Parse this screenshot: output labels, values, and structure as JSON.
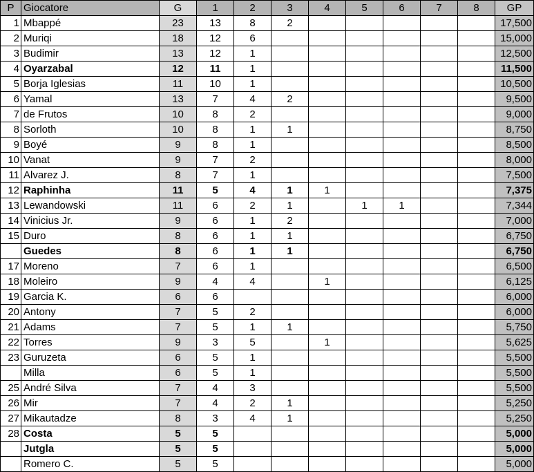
{
  "headers": {
    "p": "P",
    "name": "Giocatore",
    "g": "G",
    "c1": "1",
    "c2": "2",
    "c3": "3",
    "c4": "4",
    "c5": "5",
    "c6": "6",
    "c7": "7",
    "c8": "8",
    "gp": "GP"
  },
  "colors": {
    "header": "#b4b4b4",
    "g_column": "#d9d9d9",
    "gp_column": "#c0c0c0"
  },
  "rows": [
    {
      "p": "1",
      "name": "Mbappé",
      "g": "23",
      "c1": "13",
      "c2": "8",
      "c3": "2",
      "gp": "17,500",
      "bold": []
    },
    {
      "p": "2",
      "name": "Muriqi",
      "g": "18",
      "c1": "12",
      "c2": "6",
      "gp": "15,000",
      "bold": []
    },
    {
      "p": "3",
      "name": "Budimir",
      "g": "13",
      "c1": "12",
      "c2": "1",
      "gp": "12,500",
      "bold": []
    },
    {
      "p": "4",
      "name": "Oyarzabal",
      "g": "12",
      "c1": "11",
      "c2": "1",
      "gp": "11,500",
      "bold": [
        "name",
        "g",
        "c1",
        "gp"
      ]
    },
    {
      "p": "5",
      "name": "Borja Iglesias",
      "g": "11",
      "c1": "10",
      "c2": "1",
      "gp": "10,500",
      "bold": []
    },
    {
      "p": "6",
      "name": "Yamal",
      "g": "13",
      "c1": "7",
      "c2": "4",
      "c3": "2",
      "gp": "9,500",
      "bold": []
    },
    {
      "p": "7",
      "name": "de Frutos",
      "g": "10",
      "c1": "8",
      "c2": "2",
      "gp": "9,000",
      "bold": []
    },
    {
      "p": "8",
      "name": "Sorloth",
      "g": "10",
      "c1": "8",
      "c2": "1",
      "c3": "1",
      "gp": "8,750",
      "bold": []
    },
    {
      "p": "9",
      "name": "Boyé",
      "g": "9",
      "c1": "8",
      "c2": "1",
      "gp": "8,500",
      "bold": []
    },
    {
      "p": "10",
      "name": "Vanat",
      "g": "9",
      "c1": "7",
      "c2": "2",
      "gp": "8,000",
      "bold": []
    },
    {
      "p": "11",
      "name": "Alvarez J.",
      "g": "8",
      "c1": "7",
      "c2": "1",
      "gp": "7,500",
      "bold": []
    },
    {
      "p": "12",
      "name": "Raphinha",
      "g": "11",
      "c1": "5",
      "c2": "4",
      "c3": "1",
      "c4": "1",
      "gp": "7,375",
      "bold": [
        "name",
        "g",
        "c1",
        "c2",
        "c3",
        "gp"
      ]
    },
    {
      "p": "13",
      "name": "Lewandowski",
      "g": "11",
      "c1": "6",
      "c2": "2",
      "c3": "1",
      "c5": "1",
      "c6": "1",
      "gp": "7,344",
      "bold": []
    },
    {
      "p": "14",
      "name": "Vinicius Jr.",
      "g": "9",
      "c1": "6",
      "c2": "1",
      "c3": "2",
      "gp": "7,000",
      "bold": []
    },
    {
      "p": "15",
      "name": "Duro",
      "g": "8",
      "c1": "6",
      "c2": "1",
      "c3": "1",
      "gp": "6,750",
      "bold": []
    },
    {
      "p": "",
      "name": "Guedes",
      "g": "8",
      "c1": "6",
      "c2": "1",
      "c3": "1",
      "gp": "6,750",
      "bold": [
        "name",
        "g",
        "c2",
        "c3",
        "gp"
      ]
    },
    {
      "p": "17",
      "name": "Moreno",
      "g": "7",
      "c1": "6",
      "c2": "1",
      "gp": "6,500",
      "bold": []
    },
    {
      "p": "18",
      "name": "Moleiro",
      "g": "9",
      "c1": "4",
      "c2": "4",
      "c4": "1",
      "gp": "6,125",
      "bold": []
    },
    {
      "p": "19",
      "name": "Garcia K.",
      "g": "6",
      "c1": "6",
      "gp": "6,000",
      "bold": []
    },
    {
      "p": "20",
      "name": "Antony",
      "g": "7",
      "c1": "5",
      "c2": "2",
      "gp": "6,000",
      "bold": []
    },
    {
      "p": "21",
      "name": "Adams",
      "g": "7",
      "c1": "5",
      "c2": "1",
      "c3": "1",
      "gp": "5,750",
      "bold": []
    },
    {
      "p": "22",
      "name": "Torres",
      "g": "9",
      "c1": "3",
      "c2": "5",
      "c4": "1",
      "gp": "5,625",
      "bold": []
    },
    {
      "p": "23",
      "name": "Guruzeta",
      "g": "6",
      "c1": "5",
      "c2": "1",
      "gp": "5,500",
      "bold": []
    },
    {
      "p": "",
      "name": "Milla",
      "g": "6",
      "c1": "5",
      "c2": "1",
      "gp": "5,500",
      "bold": []
    },
    {
      "p": "25",
      "name": "André Silva",
      "g": "7",
      "c1": "4",
      "c2": "3",
      "gp": "5,500",
      "bold": []
    },
    {
      "p": "26",
      "name": "Mir",
      "g": "7",
      "c1": "4",
      "c2": "2",
      "c3": "1",
      "gp": "5,250",
      "bold": []
    },
    {
      "p": "27",
      "name": "Mikautadze",
      "g": "8",
      "c1": "3",
      "c2": "4",
      "c3": "1",
      "gp": "5,250",
      "bold": []
    },
    {
      "p": "28",
      "name": "Costa",
      "g": "5",
      "c1": "5",
      "gp": "5,000",
      "bold": [
        "name",
        "g",
        "c1",
        "gp"
      ]
    },
    {
      "p": "",
      "name": "Jutgla",
      "g": "5",
      "c1": "5",
      "gp": "5,000",
      "bold": [
        "name",
        "g",
        "c1",
        "gp"
      ]
    },
    {
      "p": "",
      "name": "Romero C.",
      "g": "5",
      "c1": "5",
      "gp": "5,000",
      "bold": []
    }
  ]
}
